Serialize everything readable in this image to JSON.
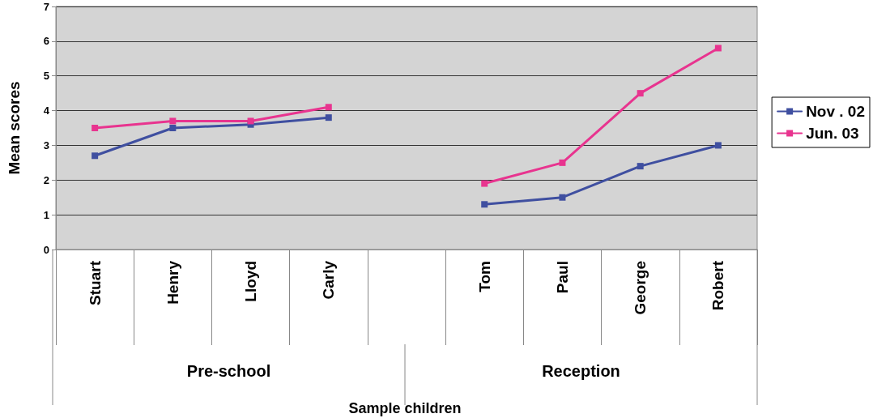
{
  "chart_data": {
    "type": "line",
    "ylabel": "Mean scores",
    "categories": [
      "Stuart",
      "Henry",
      "Lloyd",
      "Carly",
      null,
      "Tom",
      "Paul",
      "George",
      "Robert"
    ],
    "series": [
      {
        "name": "Nov . 02",
        "color": "#3f4fa0",
        "values": [
          2.7,
          3.5,
          3.6,
          3.8,
          null,
          1.3,
          1.5,
          2.4,
          3.0
        ]
      },
      {
        "name": "Jun. 03",
        "color": "#e8348f",
        "values": [
          3.5,
          3.7,
          3.7,
          4.1,
          null,
          1.9,
          2.5,
          4.5,
          5.8
        ]
      }
    ],
    "ylim": [
      0,
      7
    ],
    "yticks": [
      0,
      1,
      2,
      3,
      4,
      5,
      6,
      7
    ],
    "grid": "y",
    "legend": "right",
    "marker": "square",
    "line_style": "solid",
    "annotations": [
      "Pre-school",
      "Reception",
      "Sample children"
    ]
  }
}
